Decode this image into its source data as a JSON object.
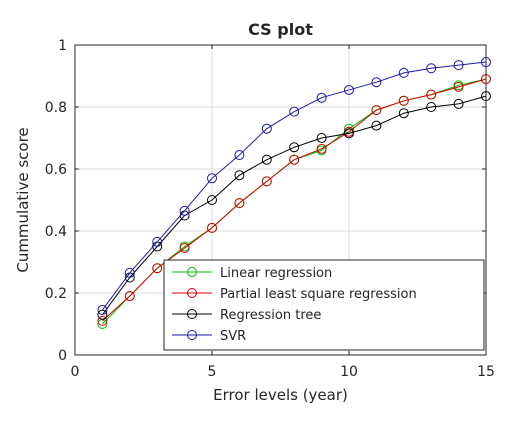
{
  "chart_data": {
    "type": "line",
    "title": "CS plot",
    "xlabel": "Error levels (year)",
    "ylabel": "Cummulative score",
    "xlim": [
      0,
      15
    ],
    "ylim": [
      0,
      1
    ],
    "xticks": [
      "0",
      "5",
      "10",
      "15"
    ],
    "yticks": [
      "0",
      "0.2",
      "0.4",
      "0.6",
      "0.8",
      "1"
    ],
    "grid": true,
    "legend_position": "bottom-right",
    "x": [
      1,
      2,
      3,
      4,
      5,
      6,
      7,
      8,
      9,
      10,
      11,
      12,
      13,
      14,
      15
    ],
    "series": [
      {
        "name": "Linear regression",
        "color": "#00c000",
        "marker": "circle",
        "values": [
          0.1,
          0.19,
          0.28,
          0.35,
          0.41,
          0.49,
          0.56,
          0.63,
          0.66,
          0.73,
          0.79,
          0.82,
          0.84,
          0.87,
          0.89
        ]
      },
      {
        "name": "Partial least square regression",
        "color": "#d40000",
        "marker": "circle",
        "values": [
          0.11,
          0.19,
          0.28,
          0.345,
          0.41,
          0.49,
          0.56,
          0.63,
          0.665,
          0.72,
          0.79,
          0.82,
          0.84,
          0.865,
          0.89
        ]
      },
      {
        "name": "Regression tree",
        "color": "#000000",
        "marker": "circle",
        "values": [
          0.13,
          0.25,
          0.35,
          0.45,
          0.5,
          0.58,
          0.63,
          0.67,
          0.7,
          0.715,
          0.74,
          0.78,
          0.8,
          0.81,
          0.835
        ]
      },
      {
        "name": "SVR",
        "color": "#1a1aa8",
        "marker": "circle",
        "values": [
          0.145,
          0.265,
          0.365,
          0.465,
          0.57,
          0.645,
          0.73,
          0.785,
          0.83,
          0.855,
          0.88,
          0.91,
          0.925,
          0.935,
          0.945
        ]
      }
    ]
  }
}
